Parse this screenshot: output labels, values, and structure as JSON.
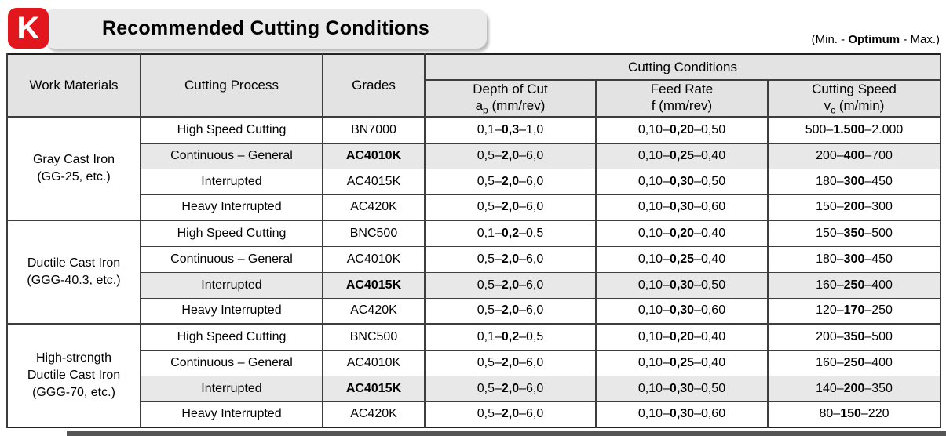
{
  "page": {
    "tab_letter": "K",
    "title": "Recommended Cutting Conditions",
    "range_note": {
      "prefix": "(Min. - ",
      "bold": "Optimum",
      "suffix": " - Max.)"
    }
  },
  "colors": {
    "badge_red": "#e2171e",
    "banner_gray": "#eaeaea",
    "header_cell_gray": "#e3e3e3",
    "shaded_row_gray": "#e8e8e8",
    "border_dark": "#3d3d3d",
    "footer_bar_gray": "#555555"
  },
  "table": {
    "dash": "–",
    "headers": {
      "work_materials": "Work Materials",
      "cutting_process": "Cutting Process",
      "grades": "Grades",
      "cutting_conditions": "Cutting Conditions",
      "depth": {
        "title": "Depth of Cut",
        "symbol": "a",
        "symbol_sub": "p",
        "unit": " (mm/rev)"
      },
      "feed": {
        "title": "Feed Rate",
        "symbol": "f",
        "symbol_sub": "",
        "unit": " (mm/rev)"
      },
      "speed": {
        "title": "Cutting Speed",
        "symbol": "v",
        "symbol_sub": "c",
        "unit": " (m/min)"
      }
    },
    "groups": [
      {
        "material_lines": [
          "Gray Cast Iron",
          "(GG-25, etc.)"
        ],
        "rows": [
          {
            "process": "High Speed Cutting",
            "grade": "BN7000",
            "grade_bold": false,
            "shaded": false,
            "depth": [
              "0,1",
              "0,3",
              "1,0"
            ],
            "feed": [
              "0,10",
              "0,20",
              "0,50"
            ],
            "speed": [
              "500",
              "1.500",
              "2.000"
            ]
          },
          {
            "process": "Continuous – General",
            "grade": "AC4010K",
            "grade_bold": true,
            "shaded": true,
            "depth": [
              "0,5",
              "2,0",
              "6,0"
            ],
            "feed": [
              "0,10",
              "0,25",
              "0,40"
            ],
            "speed": [
              "200",
              "400",
              "700"
            ]
          },
          {
            "process": "Interrupted",
            "grade": "AC4015K",
            "grade_bold": false,
            "shaded": false,
            "depth": [
              "0,5",
              "2,0",
              "6,0"
            ],
            "feed": [
              "0,10",
              "0,30",
              "0,50"
            ],
            "speed": [
              "180",
              "300",
              "450"
            ]
          },
          {
            "process": "Heavy Interrupted",
            "grade": "AC420K",
            "grade_bold": false,
            "shaded": false,
            "depth": [
              "0,5",
              "2,0",
              "6,0"
            ],
            "feed": [
              "0,10",
              "0,30",
              "0,60"
            ],
            "speed": [
              "150",
              "200",
              "300"
            ]
          }
        ]
      },
      {
        "material_lines": [
          "Ductile Cast Iron",
          "(GGG-40.3, etc.)"
        ],
        "rows": [
          {
            "process": "High Speed Cutting",
            "grade": "BNC500",
            "grade_bold": false,
            "shaded": false,
            "depth": [
              "0,1",
              "0,2",
              "0,5"
            ],
            "feed": [
              "0,10",
              "0,20",
              "0,40"
            ],
            "speed": [
              "150",
              "350",
              "500"
            ]
          },
          {
            "process": "Continuous – General",
            "grade": "AC4010K",
            "grade_bold": false,
            "shaded": false,
            "depth": [
              "0,5",
              "2,0",
              "6,0"
            ],
            "feed": [
              "0,10",
              "0,25",
              "0,40"
            ],
            "speed": [
              "180",
              "300",
              "450"
            ]
          },
          {
            "process": "Interrupted",
            "grade": "AC4015K",
            "grade_bold": true,
            "shaded": true,
            "depth": [
              "0,5",
              "2,0",
              "6,0"
            ],
            "feed": [
              "0,10",
              "0,30",
              "0,50"
            ],
            "speed": [
              "160",
              "250",
              "400"
            ]
          },
          {
            "process": "Heavy Interrupted",
            "grade": "AC420K",
            "grade_bold": false,
            "shaded": false,
            "depth": [
              "0,5",
              "2,0",
              "6,0"
            ],
            "feed": [
              "0,10",
              "0,30",
              "0,60"
            ],
            "speed": [
              "120",
              "170",
              "250"
            ]
          }
        ]
      },
      {
        "material_lines": [
          "High-strength",
          "Ductile Cast Iron",
          "(GGG-70, etc.)"
        ],
        "rows": [
          {
            "process": "High Speed Cutting",
            "grade": "BNC500",
            "grade_bold": false,
            "shaded": false,
            "depth": [
              "0,1",
              "0,2",
              "0,5"
            ],
            "feed": [
              "0,10",
              "0,20",
              "0,40"
            ],
            "speed": [
              "200",
              "350",
              "500"
            ]
          },
          {
            "process": "Continuous – General",
            "grade": "AC4010K",
            "grade_bold": false,
            "shaded": false,
            "depth": [
              "0,5",
              "2,0",
              "6,0"
            ],
            "feed": [
              "0,10",
              "0,25",
              "0,40"
            ],
            "speed": [
              "160",
              "250",
              "400"
            ]
          },
          {
            "process": "Interrupted",
            "grade": "AC4015K",
            "grade_bold": true,
            "shaded": true,
            "depth": [
              "0,5",
              "2,0",
              "6,0"
            ],
            "feed": [
              "0,10",
              "0,30",
              "0,50"
            ],
            "speed": [
              "140",
              "200",
              "350"
            ]
          },
          {
            "process": "Heavy Interrupted",
            "grade": "AC420K",
            "grade_bold": false,
            "shaded": false,
            "depth": [
              "0,5",
              "2,0",
              "6,0"
            ],
            "feed": [
              "0,10",
              "0,30",
              "0,60"
            ],
            "speed": [
              "80",
              "150",
              "220"
            ]
          }
        ]
      }
    ]
  }
}
